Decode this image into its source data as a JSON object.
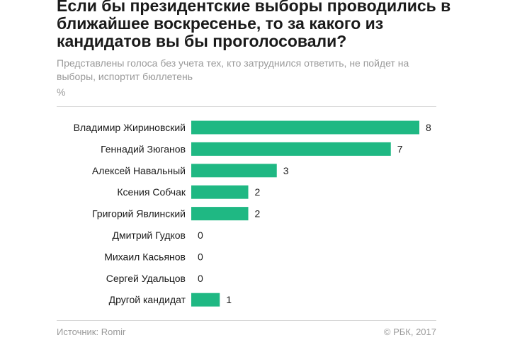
{
  "header": {
    "title": "Если бы президентские выборы проводились в ближайшее воскресенье, то за какого из кандидатов вы бы проголосовали?",
    "subtitle": "Представлены голоса без учета тех, кто затруднился ответить, не пойдет на выборы, испортит бюллетень",
    "unit": "%"
  },
  "footer": {
    "source": "Источник: Romir",
    "copyright": "© РБК, 2017"
  },
  "colors": {
    "bar": "#1fb883",
    "text": "#1a1a1a",
    "muted": "#9a9a9a"
  },
  "chart_data": {
    "type": "bar",
    "orientation": "horizontal",
    "title": "Если бы президентские выборы проводились в ближайшее воскресенье, то за какого из кандидатов вы бы проголосовали?",
    "subtitle": "Представлены голоса без учета тех, кто затруднился ответить, не пойдет на выборы, испортит бюллетень",
    "xlabel": "%",
    "ylabel": "",
    "categories": [
      "Владимир Жириновский",
      "Геннадий Зюганов",
      "Алексей Навальный",
      "Ксения Собчак",
      "Григорий Явлинский",
      "Дмитрий Гудков",
      "Михаил Касьянов",
      "Сергей Удальцов",
      "Другой кандидат"
    ],
    "values": [
      8,
      7,
      3,
      2,
      2,
      0,
      0,
      0,
      1
    ],
    "data_labels": [
      "8",
      "7",
      "3",
      "2",
      "2",
      "0",
      "0",
      "0",
      "1"
    ],
    "xlim": [
      0,
      8
    ],
    "grid": false,
    "legend": "none"
  }
}
